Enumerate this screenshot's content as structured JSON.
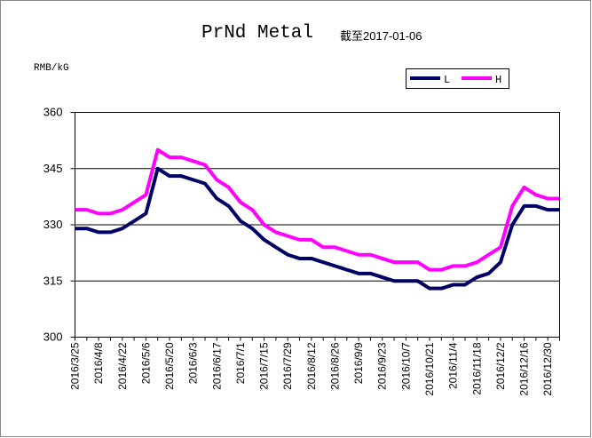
{
  "chart_data": {
    "type": "line",
    "title": "PrNd Metal",
    "subtitle": "截至2017-01-06",
    "y_label": "RMB/kG",
    "categories": [
      "2016/3/25",
      null,
      "2016/4/8",
      null,
      "2016/4/22",
      null,
      "2016/5/6",
      null,
      "2016/5/20",
      null,
      "2016/6/3",
      null,
      "2016/6/17",
      null,
      "2016/7/1",
      null,
      "2016/7/15",
      null,
      "2016/7/29",
      null,
      "2016/8/12",
      null,
      "2016/8/26",
      null,
      "2016/9/9",
      null,
      "2016/9/23",
      null,
      "2016/10/7",
      null,
      "2016/10/21",
      null,
      "2016/11/4",
      null,
      "2016/11/18",
      null,
      "2016/12/2",
      null,
      "2016/12/16",
      null,
      "2016/12/30",
      null
    ],
    "series": [
      {
        "name": "L",
        "color": "#000066",
        "values": [
          329,
          329,
          328,
          328,
          329,
          331,
          333,
          345,
          343,
          343,
          342,
          341,
          337,
          335,
          331,
          329,
          326,
          324,
          322,
          321,
          321,
          320,
          319,
          318,
          317,
          317,
          316,
          315,
          315,
          315,
          313,
          313,
          314,
          314,
          316,
          317,
          320,
          330,
          335,
          335,
          334,
          334
        ]
      },
      {
        "name": "H",
        "color": "#ff00ff",
        "values": [
          334,
          334,
          333,
          333,
          334,
          336,
          338,
          350,
          348,
          348,
          347,
          346,
          342,
          340,
          336,
          334,
          330,
          328,
          327,
          326,
          326,
          324,
          324,
          323,
          322,
          322,
          321,
          320,
          320,
          320,
          318,
          318,
          319,
          319,
          320,
          322,
          324,
          335,
          340,
          338,
          337,
          337
        ]
      }
    ],
    "ylim": [
      300,
      360
    ],
    "yticks": [
      300,
      315,
      330,
      345,
      360
    ],
    "grid": true
  }
}
